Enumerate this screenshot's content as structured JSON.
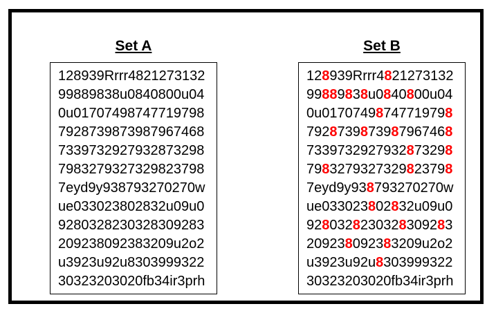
{
  "figure": {
    "description_colors": {
      "background": "#FFFFFF",
      "border": "#000000",
      "text": "#000000",
      "highlight": "#FF0000"
    },
    "sets": [
      {
        "title": "Set A",
        "highlight_char": null,
        "highlight_color": null,
        "lines": [
          "128939Rrrr4821273132",
          "99889838u0840800u04",
          "0u01707498747719798",
          "7928739873987967468",
          "7339732927932873298",
          "7983279327329823798",
          "7eyd9y938793270270w",
          "ue033023802832u09u0",
          "9280328230328309283",
          "209238092383209u2o2",
          "u3923u92u8303999322",
          "30323203020fb34ir3prh"
        ]
      },
      {
        "title": "Set B",
        "highlight_char": "8",
        "highlight_color": "#FF0000",
        "lines": [
          "128939Rrrr4821273132",
          "99889838u0840800u04",
          "0u01707498747719798",
          "7928739873987967468",
          "7339732927932873298",
          "7983279327329823798",
          "7eyd9y938793270270w",
          "ue033023802832u09u0",
          "9280328230328309283",
          "209238092383209u2o2",
          "u3923u92u8303999322",
          "30323203020fb34ir3prh"
        ]
      }
    ]
  }
}
